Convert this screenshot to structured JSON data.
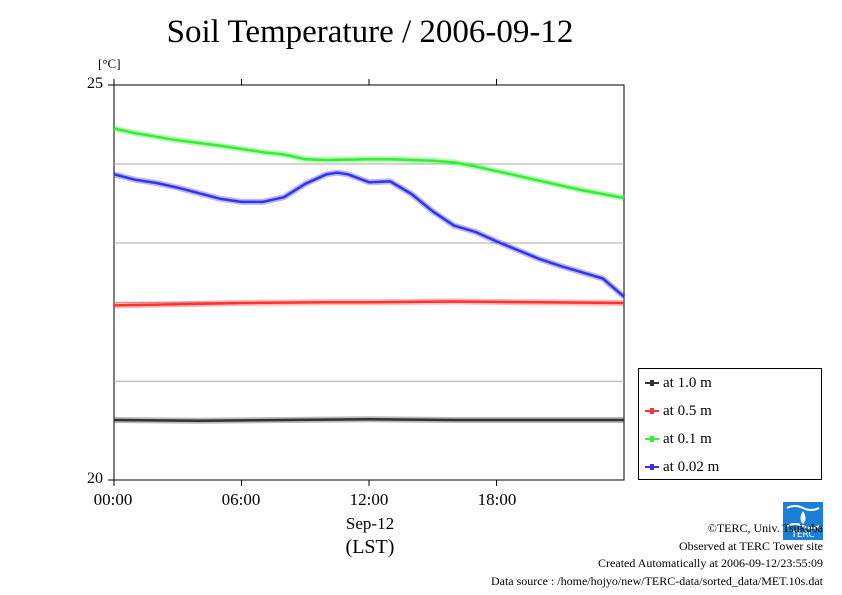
{
  "header": {
    "title": "Soil Temperature / 2006-09-12",
    "unit": "[°C]"
  },
  "footer": {
    "copyright": "©TERC, Univ. Tsukuba",
    "observed": "Observed at TERC Tower site",
    "created": "Created Automatically at 2006-09-12/23:55:09",
    "source": "Data source : /home/hojyo/new/TERC-data/sorted_data/MET.10s.dat",
    "logo_text": "TERC"
  },
  "chart_data": {
    "type": "line",
    "title": "Soil Temperature / 2006-09-12",
    "ylabel": "[°C]",
    "xlabel": "(LST)",
    "x_date_label": "Sep-12",
    "ylim": [
      20,
      25
    ],
    "xlim": [
      0,
      24
    ],
    "y_tick_labels": [
      "25",
      "20"
    ],
    "x_tick_labels": [
      "00:00",
      "06:00",
      "12:00",
      "18:00"
    ],
    "x_ticks": [
      0,
      6,
      12,
      18
    ],
    "grid_y": [
      21.25,
      22.25,
      23.0,
      24.0
    ],
    "grid": true,
    "legend_position": "right-bottom",
    "colors": {
      "1.0": "#333333",
      "0.5": "#ff3333",
      "0.1": "#33ee33",
      "0.02": "#3333ee"
    },
    "series": [
      {
        "name": "at 1.0 m",
        "color": "#333333",
        "x": [
          0,
          4,
          8,
          12,
          16,
          20,
          24
        ],
        "y": [
          20.76,
          20.75,
          20.76,
          20.77,
          20.76,
          20.76,
          20.76
        ]
      },
      {
        "name": "at 0.5 m",
        "color": "#ff3333",
        "x": [
          0,
          2,
          6,
          10,
          12,
          16,
          20,
          24
        ],
        "y": [
          22.21,
          22.22,
          22.24,
          22.25,
          22.25,
          22.26,
          22.25,
          22.24
        ]
      },
      {
        "name": "at 0.1 m",
        "color": "#33ee33",
        "x": [
          0,
          1,
          3,
          5,
          7,
          8,
          9,
          10,
          12,
          13,
          14,
          15,
          16,
          17,
          18,
          19,
          20,
          21,
          22,
          23,
          24
        ],
        "y": [
          24.45,
          24.39,
          24.3,
          24.23,
          24.15,
          24.12,
          24.06,
          24.05,
          24.06,
          24.06,
          24.05,
          24.04,
          24.02,
          23.97,
          23.91,
          23.85,
          23.79,
          23.73,
          23.67,
          23.62,
          23.57
        ]
      },
      {
        "name": "at 0.02 m",
        "color": "#3333ee",
        "x": [
          0,
          1,
          2,
          3,
          4,
          5,
          6,
          7,
          8,
          9,
          10,
          10.5,
          11,
          12,
          13,
          14,
          15,
          16,
          17,
          18,
          19,
          20,
          21,
          22,
          23,
          24
        ],
        "y": [
          23.87,
          23.8,
          23.76,
          23.7,
          23.63,
          23.56,
          23.52,
          23.52,
          23.58,
          23.75,
          23.87,
          23.89,
          23.87,
          23.77,
          23.78,
          23.62,
          23.4,
          23.22,
          23.14,
          23.02,
          22.91,
          22.8,
          22.71,
          22.63,
          22.55,
          22.32
        ]
      }
    ]
  }
}
